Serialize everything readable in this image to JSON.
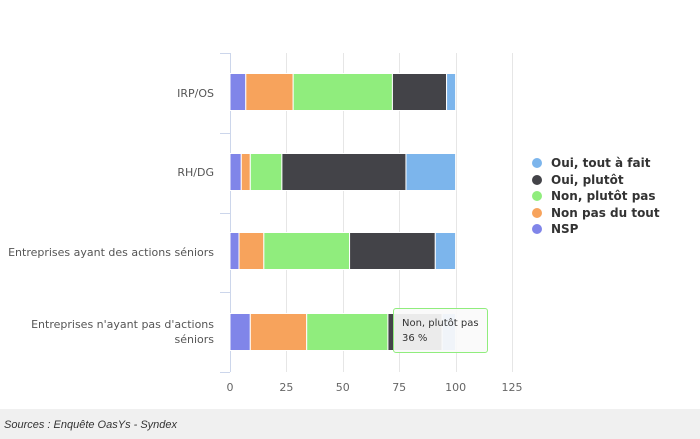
{
  "chart_data": {
    "type": "bar",
    "orientation": "horizontal",
    "stacked": true,
    "categories": [
      "IRP/OS",
      "RH/DG",
      "Entreprises ayant des actions séniors",
      "Entreprises n'ayant pas d'actions séniors"
    ],
    "series": [
      {
        "name": "NSP",
        "color": "#8085e9",
        "values": [
          7,
          5,
          4,
          9
        ]
      },
      {
        "name": "Non pas du tout",
        "color": "#f7a35c",
        "values": [
          21,
          4,
          11,
          25
        ]
      },
      {
        "name": "Non, plutôt pas",
        "color": "#90ed7d",
        "values": [
          44,
          14,
          38,
          36
        ]
      },
      {
        "name": "Oui, plutôt",
        "color": "#434348",
        "values": [
          24,
          55,
          38,
          24
        ]
      },
      {
        "name": "Oui, tout à fait",
        "color": "#7cb5ec",
        "values": [
          4,
          22,
          9,
          6
        ]
      }
    ],
    "xlim": [
      0,
      125
    ],
    "xticks": [
      "0",
      "25",
      "50",
      "75",
      "100",
      "125"
    ],
    "grid": true,
    "legend_position": "right",
    "legend_order": [
      "Oui, tout à fait",
      "Oui, plutôt",
      "Non, plutôt pas",
      "Non pas du tout",
      "NSP"
    ]
  },
  "tooltip": {
    "series": "Non, plutôt pas",
    "value": "36 %"
  },
  "source": "Sources : Enquête OasYs - Syndex"
}
